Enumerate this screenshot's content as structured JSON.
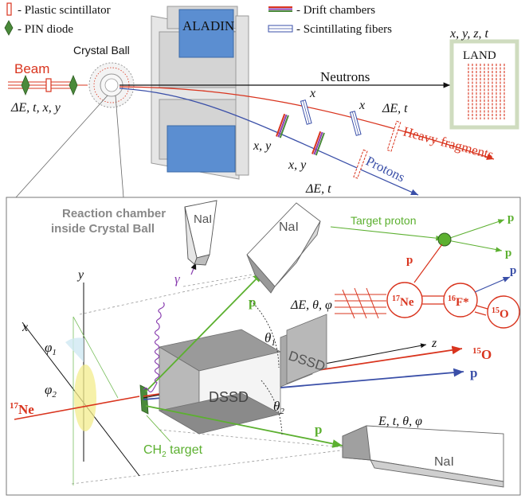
{
  "legend": {
    "plastic_scintillator": "- Plastic scintillator",
    "pin_diode": "- PIN diode",
    "drift_chambers": "- Drift chambers",
    "scintillating_fibers": "- Scintillating fibers"
  },
  "top": {
    "aladin": "ALADIN",
    "beam": "Beam",
    "crystal_ball": "Crystal Ball",
    "neutrons": "Neutrons",
    "land": "LAND",
    "land_coords": "x, y, z, t",
    "beam_meas": "ΔE, t, x, y",
    "x1": "x",
    "x2": "x",
    "xy1": "x, y",
    "xy2": "x, y",
    "de_t1": "ΔE, t",
    "de_t2": "ΔE, t",
    "heavy_fragments": "Heavy fragments",
    "protons": "Protons"
  },
  "bottom": {
    "reaction_chamber_1": "Reaction chamber",
    "reaction_chamber_2": "inside Crystal Ball",
    "nai_top_left": "NaI",
    "nai_top_right": "NaI",
    "nai_bottom": "NaI",
    "gamma": "γ",
    "p_upper": "p",
    "p_lower": "p",
    "p_right": "p",
    "theta1": "θ",
    "theta1_sub": "1",
    "theta2": "θ",
    "theta2_sub": "2",
    "de_theta_phi": "ΔE, θ, φ",
    "dssd_front": "DSSD",
    "dssd_back": "DSSD",
    "z_axis": "z",
    "x_axis": "x",
    "y_axis": "y",
    "phi1": "φ",
    "phi1_sub": "1",
    "phi2": "φ",
    "phi2_sub": "2",
    "ne17_mass": "17",
    "ne17_sym": "Ne",
    "o15_mass": "15",
    "o15_sym": "O",
    "ch2_target": "CH",
    "ch2_sub": "2",
    "ch2_word": " target",
    "e_t_theta_phi": "E, t, θ, φ"
  },
  "inset": {
    "target_proton": "Target proton",
    "p1": "p",
    "p2": "p",
    "p3": "p",
    "p4": "p",
    "ne_mass": "17",
    "ne_sym": "Ne",
    "f_mass": "16",
    "f_sym": "F*",
    "o_mass": "15",
    "o_sym": "O"
  },
  "colors": {
    "beam_red": "#d9341e",
    "proton_blue": "#3a4fa8",
    "proton_green": "#5cb030",
    "gamma_purple": "#8a3fb0",
    "aladin_blue": "#5b8ed1",
    "land_frame": "#cfdcbf",
    "detector_gray": "#8e8e8e"
  }
}
